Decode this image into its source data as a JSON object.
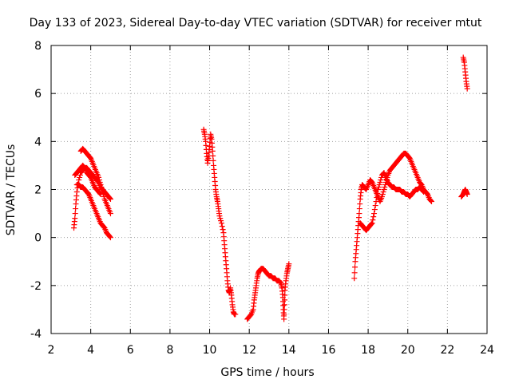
{
  "chart_data": {
    "type": "scatter",
    "title": "Day 133 of 2023, Sidereal Day-to-day VTEC variation (SDTVAR) for receiver mtut",
    "xlabel": "GPS time / hours",
    "ylabel": "SDTVAR / TECUs",
    "xlim": [
      2,
      24
    ],
    "ylim": [
      -4,
      8
    ],
    "xticks": [
      2,
      4,
      6,
      8,
      10,
      12,
      14,
      16,
      18,
      20,
      22,
      24
    ],
    "yticks": [
      -4,
      -2,
      0,
      2,
      4,
      6,
      8
    ],
    "grid": true,
    "marker": "+",
    "color": "#ff0000",
    "series": [
      {
        "name": "SDTVAR",
        "segments": [
          [
            [
              3.15,
              0.4
            ],
            [
              3.2,
              0.8
            ],
            [
              3.25,
              1.4
            ],
            [
              3.3,
              1.9
            ],
            [
              3.4,
              2.4
            ],
            [
              3.5,
              2.7
            ],
            [
              3.6,
              2.8
            ],
            [
              3.7,
              2.9
            ],
            [
              3.8,
              2.9
            ],
            [
              3.9,
              2.8
            ],
            [
              4.0,
              2.7
            ],
            [
              4.1,
              2.6
            ],
            [
              4.2,
              2.5
            ],
            [
              4.3,
              2.4
            ],
            [
              4.4,
              2.3
            ],
            [
              4.5,
              2.1
            ],
            [
              4.6,
              2.0
            ],
            [
              4.7,
              1.9
            ],
            [
              4.8,
              1.8
            ],
            [
              4.9,
              1.7
            ],
            [
              5.0,
              1.6
            ]
          ],
          [
            [
              3.3,
              2.2
            ],
            [
              3.4,
              2.2
            ],
            [
              3.5,
              2.1
            ],
            [
              3.6,
              2.1
            ],
            [
              3.7,
              2.0
            ],
            [
              3.8,
              1.9
            ],
            [
              3.9,
              1.8
            ],
            [
              4.0,
              1.6
            ],
            [
              4.1,
              1.4
            ],
            [
              4.2,
              1.2
            ],
            [
              4.3,
              1.0
            ],
            [
              4.4,
              0.8
            ],
            [
              4.5,
              0.6
            ],
            [
              4.6,
              0.5
            ],
            [
              4.7,
              0.4
            ],
            [
              4.8,
              0.2
            ],
            [
              4.9,
              0.1
            ],
            [
              5.0,
              0.0
            ]
          ],
          [
            [
              3.5,
              3.6
            ],
            [
              3.6,
              3.7
            ],
            [
              3.7,
              3.6
            ],
            [
              3.8,
              3.5
            ],
            [
              3.9,
              3.4
            ],
            [
              4.0,
              3.3
            ],
            [
              4.1,
              3.1
            ],
            [
              4.2,
              2.9
            ],
            [
              4.3,
              2.7
            ],
            [
              4.4,
              2.5
            ],
            [
              4.5,
              2.2
            ],
            [
              4.6,
              1.9
            ],
            [
              4.7,
              1.6
            ],
            [
              4.8,
              1.4
            ],
            [
              4.9,
              1.2
            ],
            [
              5.0,
              1.0
            ]
          ],
          [
            [
              3.2,
              2.6
            ],
            [
              3.3,
              2.7
            ],
            [
              3.4,
              2.8
            ],
            [
              3.5,
              2.9
            ],
            [
              3.6,
              3.0
            ],
            [
              3.7,
              2.9
            ],
            [
              3.8,
              2.7
            ],
            [
              3.9,
              2.6
            ],
            [
              4.0,
              2.5
            ],
            [
              4.1,
              2.3
            ],
            [
              4.2,
              2.1
            ],
            [
              4.3,
              2.0
            ],
            [
              4.4,
              1.9
            ],
            [
              4.5,
              1.8
            ]
          ],
          [
            [
              9.7,
              4.5
            ],
            [
              9.75,
              4.3
            ],
            [
              9.8,
              4.0
            ],
            [
              9.85,
              3.5
            ],
            [
              9.9,
              3.1
            ],
            [
              9.95,
              3.4
            ],
            [
              10.0,
              3.8
            ],
            [
              10.05,
              4.3
            ],
            [
              10.1,
              4.1
            ],
            [
              10.15,
              3.6
            ],
            [
              10.2,
              3.0
            ],
            [
              10.25,
              2.5
            ],
            [
              10.3,
              2.0
            ],
            [
              10.35,
              1.7
            ],
            [
              10.4,
              1.5
            ],
            [
              10.45,
              1.2
            ],
            [
              10.5,
              0.9
            ],
            [
              10.6,
              0.6
            ],
            [
              10.7,
              0.2
            ],
            [
              10.75,
              -0.3
            ],
            [
              10.8,
              -0.8
            ],
            [
              10.85,
              -1.3
            ],
            [
              10.9,
              -1.8
            ],
            [
              10.95,
              -2.2
            ],
            [
              11.0,
              -2.3
            ],
            [
              11.05,
              -2.1
            ],
            [
              11.1,
              -2.4
            ],
            [
              11.15,
              -2.8
            ],
            [
              11.2,
              -3.1
            ],
            [
              11.25,
              -3.2
            ],
            [
              11.3,
              -3.2
            ]
          ],
          [
            [
              11.9,
              -3.4
            ],
            [
              12.0,
              -3.3
            ],
            [
              12.1,
              -3.2
            ],
            [
              12.2,
              -3.0
            ],
            [
              12.25,
              -2.6
            ],
            [
              12.3,
              -2.3
            ],
            [
              12.35,
              -2.0
            ],
            [
              12.4,
              -1.7
            ],
            [
              12.45,
              -1.5
            ],
            [
              12.5,
              -1.4
            ],
            [
              12.6,
              -1.3
            ],
            [
              12.7,
              -1.3
            ],
            [
              12.8,
              -1.4
            ],
            [
              12.9,
              -1.5
            ],
            [
              13.0,
              -1.6
            ],
            [
              13.1,
              -1.6
            ],
            [
              13.2,
              -1.7
            ],
            [
              13.3,
              -1.7
            ],
            [
              13.4,
              -1.8
            ],
            [
              13.5,
              -1.8
            ],
            [
              13.6,
              -1.9
            ],
            [
              13.65,
              -2.1
            ],
            [
              13.7,
              -2.5
            ],
            [
              13.72,
              -3.0
            ],
            [
              13.75,
              -3.4
            ],
            [
              13.78,
              -2.8
            ],
            [
              13.8,
              -2.2
            ],
            [
              13.85,
              -1.8
            ],
            [
              13.9,
              -1.5
            ],
            [
              13.95,
              -1.3
            ],
            [
              14.0,
              -1.1
            ]
          ],
          [
            [
              17.3,
              -1.7
            ],
            [
              17.35,
              -1.0
            ],
            [
              17.4,
              -0.5
            ],
            [
              17.45,
              0.0
            ],
            [
              17.5,
              0.5
            ],
            [
              17.55,
              1.0
            ],
            [
              17.6,
              1.6
            ],
            [
              17.65,
              2.0
            ],
            [
              17.7,
              2.2
            ],
            [
              17.8,
              2.1
            ],
            [
              17.9,
              2.0
            ],
            [
              18.0,
              2.2
            ],
            [
              18.1,
              2.4
            ],
            [
              18.2,
              2.3
            ],
            [
              18.3,
              2.1
            ],
            [
              18.4,
              1.9
            ],
            [
              18.5,
              1.7
            ],
            [
              18.6,
              1.5
            ],
            [
              18.7,
              1.7
            ],
            [
              18.8,
              2.0
            ],
            [
              18.9,
              2.3
            ],
            [
              19.0,
              2.6
            ],
            [
              19.1,
              2.8
            ],
            [
              19.2,
              2.9
            ],
            [
              19.3,
              3.0
            ],
            [
              19.4,
              3.1
            ],
            [
              19.5,
              3.2
            ],
            [
              19.6,
              3.3
            ],
            [
              19.7,
              3.4
            ],
            [
              19.8,
              3.5
            ],
            [
              19.9,
              3.5
            ],
            [
              20.0,
              3.4
            ],
            [
              20.1,
              3.3
            ],
            [
              20.2,
              3.1
            ],
            [
              20.3,
              2.9
            ],
            [
              20.4,
              2.7
            ],
            [
              20.5,
              2.5
            ],
            [
              20.6,
              2.3
            ],
            [
              20.7,
              2.2
            ],
            [
              20.8,
              2.0
            ],
            [
              20.9,
              1.9
            ],
            [
              21.0,
              1.8
            ],
            [
              21.1,
              1.6
            ],
            [
              21.2,
              1.5
            ]
          ],
          [
            [
              17.6,
              0.6
            ],
            [
              17.7,
              0.5
            ],
            [
              17.8,
              0.4
            ],
            [
              17.9,
              0.3
            ],
            [
              18.0,
              0.4
            ],
            [
              18.1,
              0.5
            ],
            [
              18.2,
              0.6
            ],
            [
              18.3,
              1.0
            ],
            [
              18.4,
              1.5
            ],
            [
              18.5,
              2.0
            ],
            [
              18.6,
              2.3
            ],
            [
              18.7,
              2.6
            ],
            [
              18.8,
              2.7
            ],
            [
              18.9,
              2.5
            ],
            [
              19.0,
              2.3
            ],
            [
              19.1,
              2.2
            ],
            [
              19.2,
              2.1
            ],
            [
              19.3,
              2.1
            ],
            [
              19.4,
              2.0
            ],
            [
              19.5,
              2.0
            ],
            [
              19.6,
              2.0
            ],
            [
              19.7,
              1.9
            ],
            [
              19.8,
              1.9
            ],
            [
              19.9,
              1.8
            ],
            [
              20.0,
              1.8
            ],
            [
              20.1,
              1.7
            ],
            [
              20.2,
              1.8
            ],
            [
              20.3,
              1.9
            ],
            [
              20.4,
              2.0
            ],
            [
              20.5,
              2.0
            ],
            [
              20.6,
              2.1
            ],
            [
              20.7,
              2.0
            ],
            [
              20.8,
              1.9
            ]
          ],
          [
            [
              22.7,
              1.7
            ],
            [
              22.8,
              1.8
            ],
            [
              22.85,
              1.9
            ],
            [
              22.9,
              2.0
            ],
            [
              22.95,
              1.9
            ],
            [
              23.0,
              1.8
            ]
          ],
          [
            [
              22.8,
              7.5
            ],
            [
              22.85,
              7.3
            ],
            [
              22.9,
              6.9
            ],
            [
              22.95,
              6.5
            ],
            [
              23.0,
              6.2
            ]
          ]
        ]
      }
    ]
  }
}
